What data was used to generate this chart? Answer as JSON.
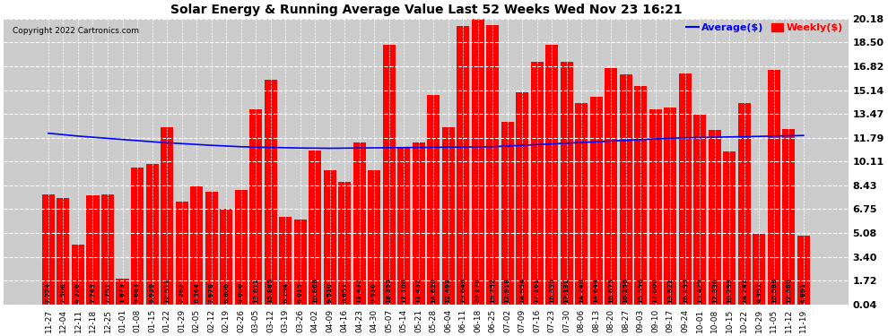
{
  "title": "Solar Energy & Running Average Value Last 52 Weeks Wed Nov 23 16:21",
  "copyright": "Copyright 2022 Cartronics.com",
  "bar_color": "#ff0000",
  "avg_line_color": "#0000ff",
  "background_color": "#ffffff",
  "plot_bg_color": "#cccccc",
  "grid_color": "#ffffff",
  "yticks": [
    0.04,
    1.72,
    3.4,
    5.08,
    6.75,
    8.43,
    10.11,
    11.79,
    13.47,
    15.14,
    16.82,
    18.5,
    20.18
  ],
  "categories": [
    "11-27",
    "12-04",
    "12-11",
    "12-18",
    "12-25",
    "01-01",
    "01-08",
    "01-15",
    "01-22",
    "01-29",
    "02-05",
    "02-12",
    "02-19",
    "02-26",
    "03-05",
    "03-12",
    "03-19",
    "03-26",
    "04-02",
    "04-09",
    "04-16",
    "04-23",
    "04-30",
    "05-07",
    "05-14",
    "05-21",
    "05-28",
    "06-04",
    "06-11",
    "06-18",
    "06-25",
    "07-02",
    "07-09",
    "07-16",
    "07-23",
    "07-30",
    "08-06",
    "08-13",
    "08-20",
    "08-27",
    "09-03",
    "09-10",
    "09-17",
    "09-24",
    "10-01",
    "10-08",
    "10-15",
    "10-22",
    "10-29",
    "11-05",
    "11-12",
    "11-19"
  ],
  "bar_values": [
    7.774,
    7.506,
    4.226,
    7.743,
    7.791,
    1.873,
    9.663,
    9.939,
    12.511,
    7.262,
    8.344,
    7.978,
    6.806,
    8.096,
    13.811,
    15.885,
    6.194,
    6.015,
    10.868,
    9.51,
    8.651,
    11.432,
    9.51,
    18.355,
    11.108,
    11.432,
    14.82,
    12.493,
    19.646,
    20.178,
    19.752,
    12.918,
    14.954,
    17.161,
    18.33,
    17.131,
    14.248,
    14.644,
    16.675,
    16.256,
    15.396,
    13.8,
    13.921,
    16.295,
    13.429,
    12.33,
    10.799,
    14.241,
    4.991,
    16.588,
    12.38,
    4.891
  ],
  "bar_labels": [
    "7.774",
    "7.506",
    "4.226",
    "7.743",
    "7.791",
    "1.873",
    "9.663",
    "9.939",
    "12.511",
    "7.262",
    "8.344",
    "7.978",
    "6.806",
    "8.096",
    "13.811",
    "15.885",
    "6.194",
    "6.015",
    "10.868",
    "9.510",
    "8.651",
    "11.432",
    "9.510",
    "18.355",
    "11.108",
    "11.432",
    "14.820",
    "12.493",
    "19.646",
    "20.178",
    "19.752",
    "12.918",
    "14.954",
    "17.161",
    "18.330",
    "17.131",
    "14.248",
    "14.644",
    "16.675",
    "16.256",
    "15.396",
    "13.800",
    "13.921",
    "16.295",
    "13.429",
    "12.330",
    "10.799",
    "14.241",
    "4.991",
    "16.588",
    "12.380",
    "4.891"
  ],
  "avg_values": [
    12.1,
    12.0,
    11.9,
    11.82,
    11.74,
    11.66,
    11.58,
    11.5,
    11.43,
    11.37,
    11.31,
    11.25,
    11.2,
    11.15,
    11.12,
    11.1,
    11.08,
    11.06,
    11.05,
    11.04,
    11.05,
    11.06,
    11.07,
    11.08,
    11.09,
    11.1,
    11.11,
    11.12,
    11.13,
    11.14,
    11.15,
    11.2,
    11.25,
    11.3,
    11.35,
    11.4,
    11.45,
    11.5,
    11.55,
    11.6,
    11.65,
    11.7,
    11.75,
    11.78,
    11.8,
    11.82,
    11.84,
    11.86,
    11.88,
    11.9,
    11.92,
    11.94
  ],
  "legend_avg_label": "Average($)",
  "legend_weekly_label": "Weekly($)",
  "ylim": [
    0.04,
    20.18
  ]
}
